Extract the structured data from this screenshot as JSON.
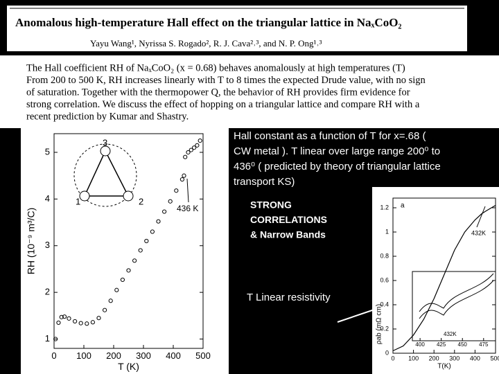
{
  "paper": {
    "title": "Anomalous high-temperature Hall effect on the triangular lattice in NaₓCoO₂",
    "authors": "Yayu Wang¹, Nyrissa S. Rogado², R. J. Cava²˒³, and N. P. Ong¹˒³",
    "abstract_lines": [
      "The Hall coefficient RH of NaₓCoO₂ (x = 0.68) behaves anomalously at high temperatures (T)",
      "From 200 to 500 K, RH increases linearly with T to 8 times the expected Drude value, with no sign",
      "of saturation.  Together with the thermopower Q, the behavior of RH provides firm evidence for",
      "strong correlation.  We discuss the effect of hopping on a triangular lattice and compare RH with a",
      "recent prediction by Kumar and Shastry."
    ]
  },
  "slide": {
    "caption_lines": [
      "Hall constant as a function of T for x=.68 (",
      "CW metal ). T linear over large range 200⁰ to",
      "436⁰ ( predicted by theory of triangular lattice",
      "transport KS)"
    ],
    "strong_lines": [
      "STRONG",
      "CORRELATIONS",
      "& Narrow Bands"
    ],
    "resistivity_note": "T Linear resistivity"
  },
  "figures": [
    {
      "type": "scatter",
      "x_label": "T (K)",
      "y_label": "RH (10⁻⁹ m³/C)",
      "xlim": [
        0,
        500
      ],
      "xticks": [
        0,
        100,
        200,
        300,
        400,
        500
      ],
      "ylim": [
        0.8,
        5.4
      ],
      "yticks": [
        1,
        2,
        3,
        4,
        5
      ],
      "annotation": "436 K",
      "inset_labels": [
        "1",
        "2",
        "3"
      ],
      "series": [
        {
          "color": "#000000",
          "x": [
            5,
            15,
            25,
            35,
            50,
            70,
            90,
            110,
            130,
            150,
            170,
            190,
            210,
            230,
            250,
            270,
            290,
            310,
            330,
            350,
            370,
            390,
            410,
            430,
            436,
            440,
            450,
            460,
            470,
            480,
            490
          ],
          "y": [
            1.0,
            1.35,
            1.47,
            1.48,
            1.44,
            1.38,
            1.34,
            1.33,
            1.36,
            1.45,
            1.62,
            1.82,
            2.05,
            2.27,
            2.47,
            2.68,
            2.9,
            3.1,
            3.3,
            3.52,
            3.73,
            3.95,
            4.18,
            4.42,
            4.5,
            4.9,
            5.0,
            5.05,
            5.1,
            5.15,
            5.25
          ]
        }
      ]
    },
    {
      "type": "line",
      "x_label": "T(K)",
      "y_label": "ρab (mΩ cm)",
      "panel": "a",
      "xlim": [
        0,
        500
      ],
      "xticks": [
        0,
        100,
        200,
        300,
        400,
        500
      ],
      "ylim": [
        0,
        1.28
      ],
      "yticks": [
        0,
        0.2,
        0.4,
        0.6,
        0.8,
        1.0,
        1.2
      ],
      "annotation": "432K",
      "inset_ticks": [
        400,
        425,
        450,
        475
      ],
      "inset_annotation": "432K",
      "series": [
        {
          "color": "#000000",
          "x": [
            0,
            50,
            100,
            150,
            200,
            250,
            300,
            350,
            400,
            432,
            450,
            500
          ],
          "y": [
            0.02,
            0.06,
            0.15,
            0.28,
            0.45,
            0.65,
            0.85,
            1.0,
            1.1,
            1.15,
            1.17,
            1.22
          ]
        }
      ]
    }
  ]
}
